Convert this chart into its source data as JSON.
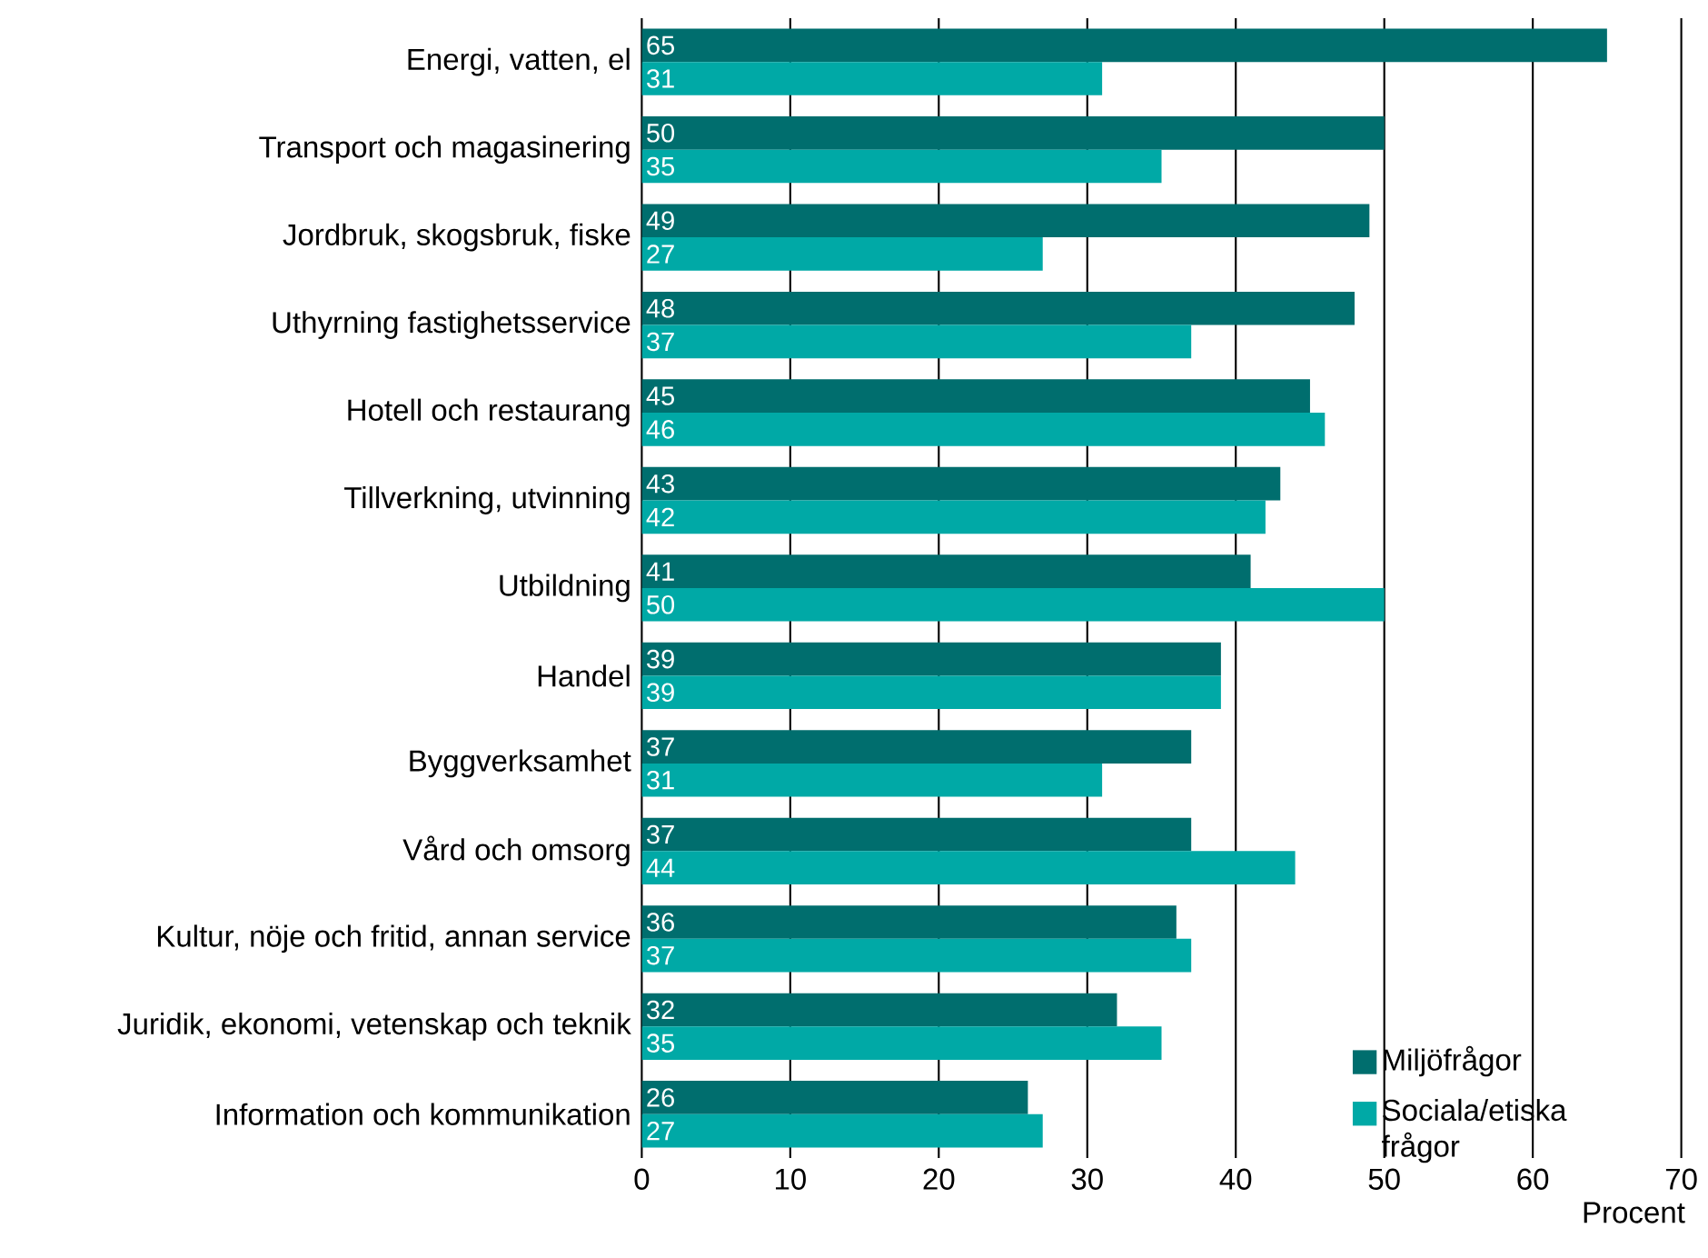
{
  "chart_data": {
    "type": "bar",
    "orientation": "horizontal",
    "xlabel": "Procent",
    "categories": [
      "Energi, vatten, el",
      "Transport och magasinering",
      "Jordbruk, skogsbruk, fiske",
      "Uthyrning fastighetsservice",
      "Hotell och restaurang",
      "Tillverkning, utvinning",
      "Utbildning",
      "Handel",
      "Byggverksamhet",
      "Vård och omsorg",
      "Kultur, nöje och fritid, annan service",
      "Juridik, ekonomi, vetenskap och teknik",
      "Information och kommunikation"
    ],
    "series": [
      {
        "name": "Miljöfrågor",
        "color": "#006e6e",
        "values": [
          65,
          50,
          49,
          48,
          45,
          43,
          41,
          39,
          37,
          37,
          36,
          32,
          26
        ]
      },
      {
        "name": "Sociala/etiska frågor",
        "color": "#00a9a6",
        "values": [
          31,
          35,
          27,
          37,
          46,
          42,
          50,
          39,
          31,
          44,
          37,
          35,
          27
        ]
      }
    ],
    "xlim": [
      0,
      70
    ],
    "xticks": [
      0,
      10,
      20,
      30,
      40,
      50,
      60,
      70
    ],
    "grid": "x",
    "legend": "bottom right",
    "data_labels": true
  }
}
